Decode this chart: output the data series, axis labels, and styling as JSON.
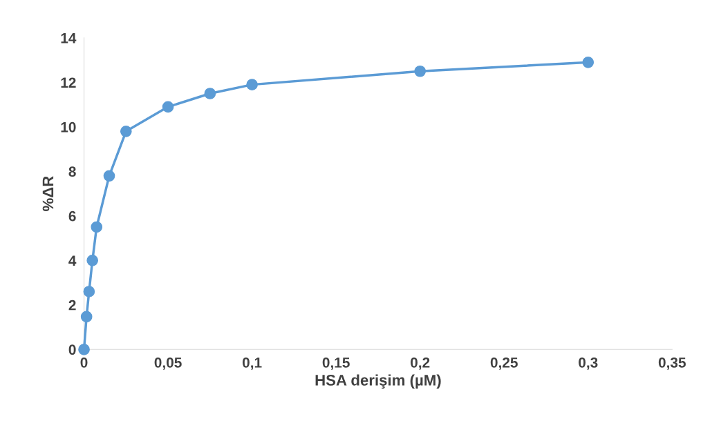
{
  "chart_data": {
    "type": "line",
    "xlabel": "HSA derişim (µM)",
    "ylabel": "%ΔR",
    "x": [
      0,
      0.0015,
      0.003,
      0.005,
      0.0075,
      0.015,
      0.025,
      0.05,
      0.075,
      0.1,
      0.2,
      0.3
    ],
    "series": [
      {
        "color": "#5b9bd5",
        "values": [
          0,
          1.47,
          2.6,
          4.0,
          5.5,
          7.8,
          9.8,
          10.9,
          11.5,
          11.9,
          12.5,
          12.9
        ]
      }
    ],
    "marker": "circle",
    "line_style": "solid",
    "grid": false,
    "legend": false,
    "xlim": [
      0,
      0.35
    ],
    "xticks": [
      0,
      {
        "value": 0.05,
        "label": "0,05"
      },
      {
        "value": 0.1,
        "label": "0,1"
      },
      {
        "value": 0.15,
        "label": "0,15"
      },
      {
        "value": 0.2,
        "label": "0,2"
      },
      {
        "value": 0.25,
        "label": "0,25"
      },
      {
        "value": 0.3,
        "label": "0,3"
      },
      {
        "value": 0.35,
        "label": "0,35"
      }
    ],
    "ylim": [
      0,
      14
    ],
    "yticks": [
      0,
      2,
      4,
      6,
      8,
      10,
      12,
      14
    ]
  }
}
